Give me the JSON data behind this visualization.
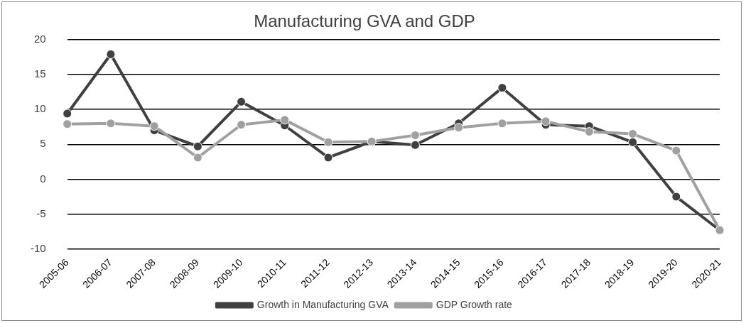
{
  "chart_data": {
    "type": "line",
    "title": "Manufacturing GVA and GDP",
    "categories": [
      "2005-06",
      "2006-07",
      "2007-08",
      "2008-09",
      "2009-10",
      "2010-11",
      "2011-12",
      "2012-13",
      "2013-14",
      "2014-15",
      "2015-16",
      "2016-17",
      "2017-18",
      "2018-19",
      "2019-20",
      "2020-21"
    ],
    "series": [
      {
        "name": "Growth in Manufacturing GVA",
        "color": "#404040",
        "values": [
          9.4,
          17.9,
          7.0,
          4.7,
          11.1,
          7.7,
          3.1,
          5.4,
          4.9,
          8.0,
          13.1,
          7.8,
          7.6,
          5.3,
          -2.5,
          -7.3
        ]
      },
      {
        "name": "GDP Growth rate",
        "color": "#a0a0a0",
        "values": [
          7.9,
          8.0,
          7.6,
          3.1,
          7.8,
          8.5,
          5.3,
          5.4,
          6.3,
          7.4,
          8.0,
          8.3,
          6.8,
          6.5,
          4.1,
          -7.3
        ]
      }
    ],
    "ylim": [
      -10,
      20
    ],
    "yticks": [
      -10,
      -5,
      0,
      5,
      10,
      15,
      20
    ],
    "grid": "y",
    "legend": "bottom",
    "marker": "circle",
    "line_style": "solid"
  }
}
